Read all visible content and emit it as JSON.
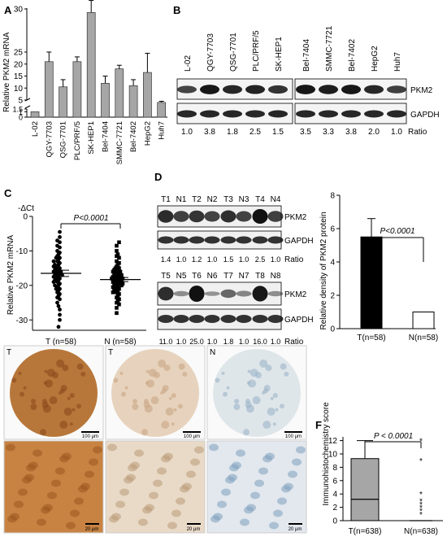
{
  "chart_data": [
    {
      "panel": "A",
      "type": "bar",
      "ylabel": "Relative PKM2 mRNA",
      "categories": [
        "L-02",
        "QGY-7703",
        "QSG-7701",
        "PLC/PRF/5",
        "SK-HEP1",
        "Bel-7404",
        "SMMC-7721",
        "Bel-7402",
        "HepG2",
        "Huh7"
      ],
      "values": [
        1,
        21,
        10.5,
        21,
        41.5,
        12,
        18,
        11,
        16.5,
        4
      ],
      "errors": [
        0,
        4,
        3,
        2,
        5,
        3,
        1.5,
        2.5,
        8,
        0.5
      ],
      "yticks": [
        "30",
        "25",
        "20",
        "15",
        "10",
        "5",
        "1.5",
        "1",
        "0"
      ],
      "ylim": [
        0,
        50
      ]
    },
    {
      "panel": "B",
      "type": "table",
      "lanes": [
        "L-02",
        "QGY-7703",
        "QSG-7701",
        "PLC/PRF/5",
        "SK-HEP1",
        "Bel-7404",
        "SMMC-7721",
        "Bel-7402",
        "HepG2",
        "Huh7"
      ],
      "bands": [
        "PKM2",
        "GAPDH"
      ],
      "ratio_label": "Ratio",
      "ratios": [
        "1.0",
        "3.8",
        "1.8",
        "2.5",
        "1.5",
        "3.5",
        "3.3",
        "3.8",
        "2.0",
        "1.0"
      ]
    },
    {
      "panel": "C",
      "type": "scatter",
      "top_label": "-ΔCt",
      "ylabel": "Relative PKM2 mRNA",
      "yticks": [
        "0",
        "-10",
        "-20",
        "-30"
      ],
      "ylim": [
        -33,
        0
      ],
      "categories": [
        "T (n=58)",
        "N (n=58)"
      ],
      "pvalue": "P<0.0001",
      "means": [
        -16.5,
        -18.3
      ],
      "sems": [
        0.9,
        0.6
      ],
      "series": [
        {
          "values": [
            -4.5,
            -6,
            -7,
            -7.5,
            -8.5,
            -9,
            -10,
            -10.5,
            -11,
            -11.5,
            -12,
            -12,
            -12.5,
            -13,
            -13,
            -13.5,
            -14,
            -14,
            -14.5,
            -14.5,
            -15,
            -15,
            -15.5,
            -15.5,
            -16,
            -16,
            -16,
            -16.5,
            -16.5,
            -17,
            -17,
            -17,
            -17.5,
            -17.5,
            -18,
            -18,
            -18.5,
            -18.5,
            -19,
            -19,
            -19.5,
            -20,
            -20,
            -20.5,
            -21,
            -21,
            -21.5,
            -22,
            -22.5,
            -23,
            -23.5,
            -24,
            -25,
            -26,
            -27,
            -28.5,
            -30,
            -32
          ]
        },
        {
          "values": [
            -7.5,
            -8.5,
            -10,
            -11,
            -11.5,
            -12,
            -13,
            -13.5,
            -14,
            -14.5,
            -15,
            -15,
            -15.5,
            -15.5,
            -16,
            -16,
            -16,
            -16.5,
            -16.5,
            -17,
            -17,
            -17,
            -17.5,
            -17.5,
            -17.5,
            -18,
            -18,
            -18,
            -18,
            -18.5,
            -18.5,
            -18.5,
            -19,
            -19,
            -19,
            -19.5,
            -19.5,
            -19.5,
            -20,
            -20,
            -20,
            -20.5,
            -20.5,
            -21,
            -21,
            -21.5,
            -21.5,
            -22,
            -22,
            -22.5,
            -23,
            -23.5,
            -24,
            -24.5,
            -25,
            -25.5,
            -26.5,
            -28
          ]
        }
      ]
    },
    {
      "panel": "D",
      "type": "table",
      "lanes_top": [
        "T1",
        "N1",
        "T2",
        "N2",
        "T3",
        "N3",
        "T4",
        "N4"
      ],
      "lanes_bottom": [
        "T5",
        "N5",
        "T6",
        "N6",
        "T7",
        "N7",
        "T8",
        "N8"
      ],
      "bands": [
        "PKM2",
        "GAPDH"
      ],
      "ratio_label": "Ratio",
      "ratios_top": [
        "1.4",
        "1.0",
        "1.2",
        "1.0",
        "1.5",
        "1.0",
        "2.5",
        "1.0"
      ],
      "ratios_bottom": [
        "11.0",
        "1.0",
        "25.0",
        "1.0",
        "1.8",
        "1.0",
        "16.0",
        "1.0"
      ]
    },
    {
      "panel": "D-bar",
      "type": "bar",
      "ylabel": "Relative density of PKM2 protein",
      "categories": [
        "T(n=58)",
        "N(n=58)"
      ],
      "values": [
        5.5,
        1.0
      ],
      "errors": [
        1.1,
        0
      ],
      "yticks": [
        "0",
        "2",
        "4",
        "6",
        "8"
      ],
      "ylim": [
        0,
        8
      ],
      "pvalue": "P<0.0001",
      "colors": [
        "#000000",
        "#ffffff"
      ]
    },
    {
      "panel": "E",
      "type": "table",
      "images": [
        {
          "label": "T",
          "scale": "100 μm"
        },
        {
          "label": "T",
          "scale": "100 μm"
        },
        {
          "label": "N",
          "scale": "100 μm"
        },
        {
          "label": "",
          "scale": "20 μm"
        },
        {
          "label": "",
          "scale": "20 μm"
        },
        {
          "label": "",
          "scale": "20 μm"
        }
      ]
    },
    {
      "panel": "F",
      "type": "box",
      "ylabel": "Immunohistochemistry score",
      "categories": [
        "T(n=638)",
        "N(n=638)"
      ],
      "yticks": [
        "0",
        "2",
        "4",
        "6",
        "8",
        "10",
        "12"
      ],
      "ylim": [
        0,
        12.5
      ],
      "pvalue": "P < 0.0001",
      "boxes": [
        {
          "min": 0,
          "q1": 0,
          "median": 3.2,
          "q3": 9.3,
          "max": 12
        },
        {
          "min": 0,
          "q1": 0,
          "median": 0,
          "q3": 0,
          "max": 0,
          "outliers": [
            1,
            1.5,
            2,
            2.5,
            3,
            4,
            9,
            12
          ]
        }
      ]
    }
  ],
  "colors": {
    "bar_fill": "#a6a6a6",
    "box_fill": "#a6a6a6",
    "ihc_brown": "#b5702f",
    "ihc_blue": "#9db4c8"
  }
}
